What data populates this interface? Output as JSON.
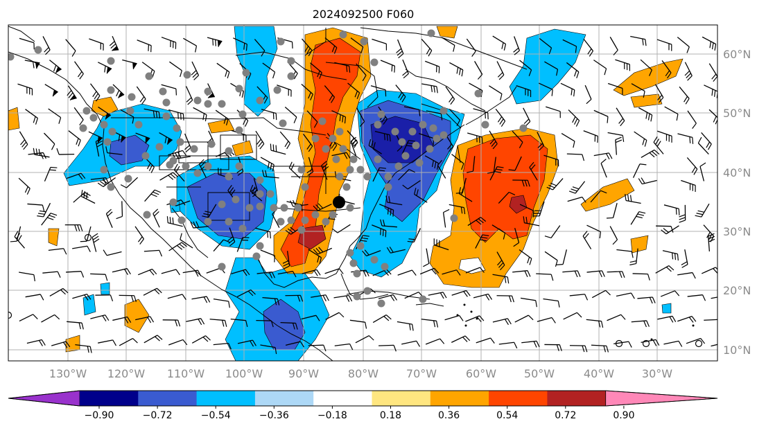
{
  "title": "2024092500 F060",
  "map": {
    "lon_labels": [
      "130°W",
      "120°W",
      "110°W",
      "100°W",
      "90°W",
      "80°W",
      "70°W",
      "60°W",
      "50°W",
      "40°W",
      "30°W"
    ],
    "lat_labels": [
      "60°N",
      "50°N",
      "40°N",
      "30°N",
      "20°N",
      "10°N"
    ]
  },
  "colorbar": {
    "tick_labels": [
      "−0.90",
      "−0.72",
      "−0.54",
      "−0.36",
      "−0.18",
      "0.18",
      "0.36",
      "0.54",
      "0.72",
      "0.90"
    ],
    "colors": [
      "#9932cc",
      "#00008b",
      "#3a5bd0",
      "#00bfff",
      "#add8f6",
      "#ffffff",
      "#ffe680",
      "#ffa500",
      "#ff4500",
      "#b22222",
      "#ff88b8"
    ]
  },
  "field_colors": {
    "strong_neg": "#1a1fa8",
    "mod_neg": "#3a5bd0",
    "weak_neg": "#00bfff",
    "very_weak_neg": "#add8f6",
    "weak_pos": "#ffa500",
    "mod_pos": "#ff4500",
    "strong_pos": "#b22222",
    "station": "#808080"
  }
}
